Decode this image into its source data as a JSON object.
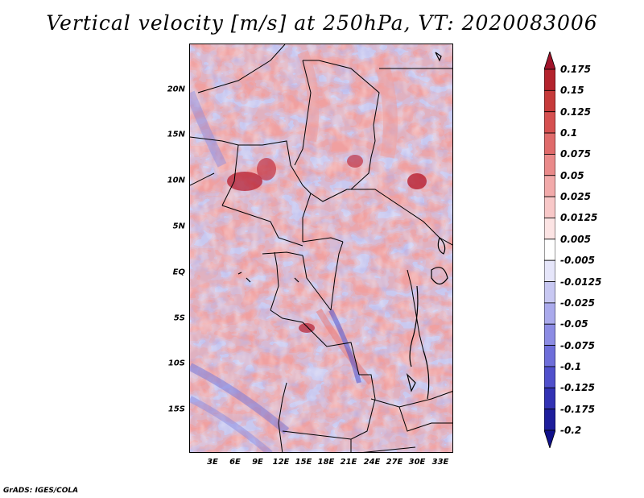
{
  "title": "Vertical velocity [m/s] at 250hPa, VT: 2020083006",
  "footer": "GrADS: IGES/COLA",
  "map": {
    "variable": "Vertical velocity",
    "units": "m/s",
    "level": "250hPa",
    "valid_time": "2020083006",
    "lat_labels": [
      "20N",
      "15N",
      "10N",
      "5N",
      "EQ",
      "5S",
      "10S",
      "15S"
    ],
    "lon_labels": [
      "3E",
      "6E",
      "9E",
      "12E",
      "15E",
      "18E",
      "21E",
      "24E",
      "27E",
      "30E",
      "33E"
    ]
  },
  "colorbar": {
    "labels": [
      "0.175",
      "0.15",
      "0.125",
      "0.1",
      "0.075",
      "0.05",
      "0.025",
      "0.0125",
      "0.005",
      "-0.005",
      "-0.0125",
      "-0.025",
      "-0.05",
      "-0.075",
      "-0.1",
      "-0.125",
      "-0.175",
      "-0.2"
    ],
    "colors": [
      "#a0142a",
      "#b4232d",
      "#c63a3a",
      "#d65050",
      "#e06b6b",
      "#ea8a8a",
      "#f2aaaa",
      "#f8c8c8",
      "#fce4e4",
      "#ffffff",
      "#e6e6fa",
      "#c8c8f2",
      "#aaaaec",
      "#8c8ce4",
      "#6e6eda",
      "#5050cc",
      "#3232b4",
      "#1e1e9c",
      "#10108a"
    ]
  }
}
